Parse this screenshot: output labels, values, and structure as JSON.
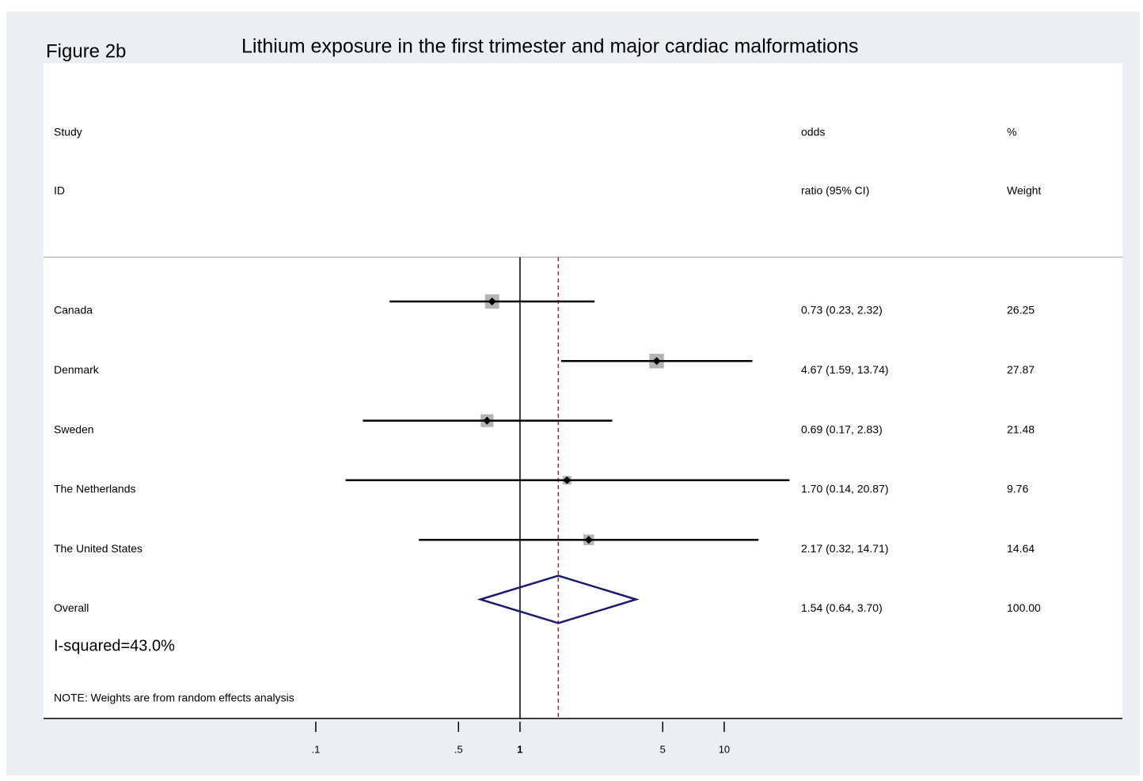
{
  "chart_data": {
    "type": "forest",
    "figure_label": "Figure 2b",
    "title": "Lithium exposure in the first trimester and major cardiac malformations",
    "column_headers": {
      "study": [
        "Study",
        "ID"
      ],
      "effect": [
        "odds",
        "ratio (95% CI)"
      ],
      "weight": [
        "%",
        "Weight"
      ]
    },
    "categories": [
      "Canada",
      "Denmark",
      "Sweden",
      "The Netherlands",
      "The United States"
    ],
    "values": [
      0.73,
      4.67,
      0.69,
      1.7,
      2.17
    ],
    "lower": [
      0.23,
      1.59,
      0.17,
      0.14,
      0.32
    ],
    "upper": [
      2.32,
      13.74,
      2.83,
      20.87,
      14.71
    ],
    "value_labels": [
      "0.73 (0.23, 2.32)",
      "4.67 (1.59, 13.74)",
      "0.69 (0.17, 2.83)",
      "1.70 (0.14, 20.87)",
      "2.17 (0.32, 14.71)"
    ],
    "weights": [
      26.25,
      27.87,
      21.48,
      9.76,
      14.64
    ],
    "overall": {
      "name": "Overall",
      "value": 1.54,
      "lower": 0.64,
      "upper": 3.7,
      "value_label": "1.54 (0.64, 3.70)",
      "weight": {
        "value": 100,
        "label": "100.00"
      }
    },
    "heterogeneity": "I-squared=43.0%",
    "note": "NOTE: Weights are from random effects analysis",
    "xscale": "log",
    "xlim": [
      0.004645,
      891
    ],
    "xticks": [
      {
        "value": 0.1,
        "label": ".1"
      },
      {
        "value": 0.5,
        "label": ".5"
      },
      1,
      5,
      10
    ],
    "null_line": 1,
    "box_color": "#b4b4b4",
    "point_color": "#000000",
    "diamond_color": "#1a1a6e",
    "overall_line_color": "#a52a2a"
  }
}
